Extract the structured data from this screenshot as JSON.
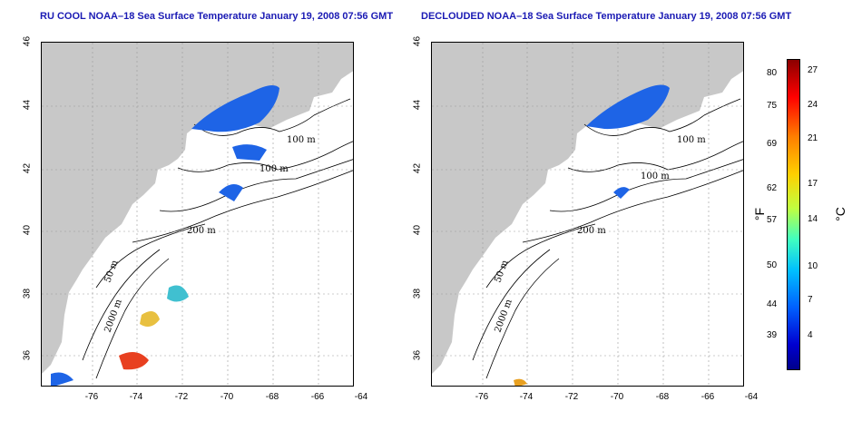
{
  "left_title": "RU COOL NOAA–18 Sea Surface Temperature January 19, 2008 07:56 GMT",
  "right_title": "DECLOUDED NOAA–18 Sea Surface Temperature January 19, 2008 07:56 GMT",
  "lat_ticks": [
    "46",
    "44",
    "42",
    "40",
    "38",
    "36"
  ],
  "lon_ticks": [
    "-76",
    "-74",
    "-72",
    "-70",
    "-68",
    "-66",
    "-64"
  ],
  "contour_labels": [
    "100 m",
    "100 m",
    "200 m",
    "50 m",
    "2000 m"
  ],
  "colorbar": {
    "fahrenheit": [
      "80",
      "75",
      "69",
      "62",
      "57",
      "50",
      "44",
      "39"
    ],
    "celsius": [
      "27",
      "24",
      "21",
      "17",
      "14",
      "10",
      "7",
      "4"
    ],
    "fahrenheit_unit": "°F",
    "celsius_unit": "°C"
  },
  "colors": {
    "land": "#c8c8c8",
    "ocean": "#ffffff",
    "title": "#1a1ab4",
    "cold": "#1e64e6",
    "warm": "#e8a020"
  }
}
